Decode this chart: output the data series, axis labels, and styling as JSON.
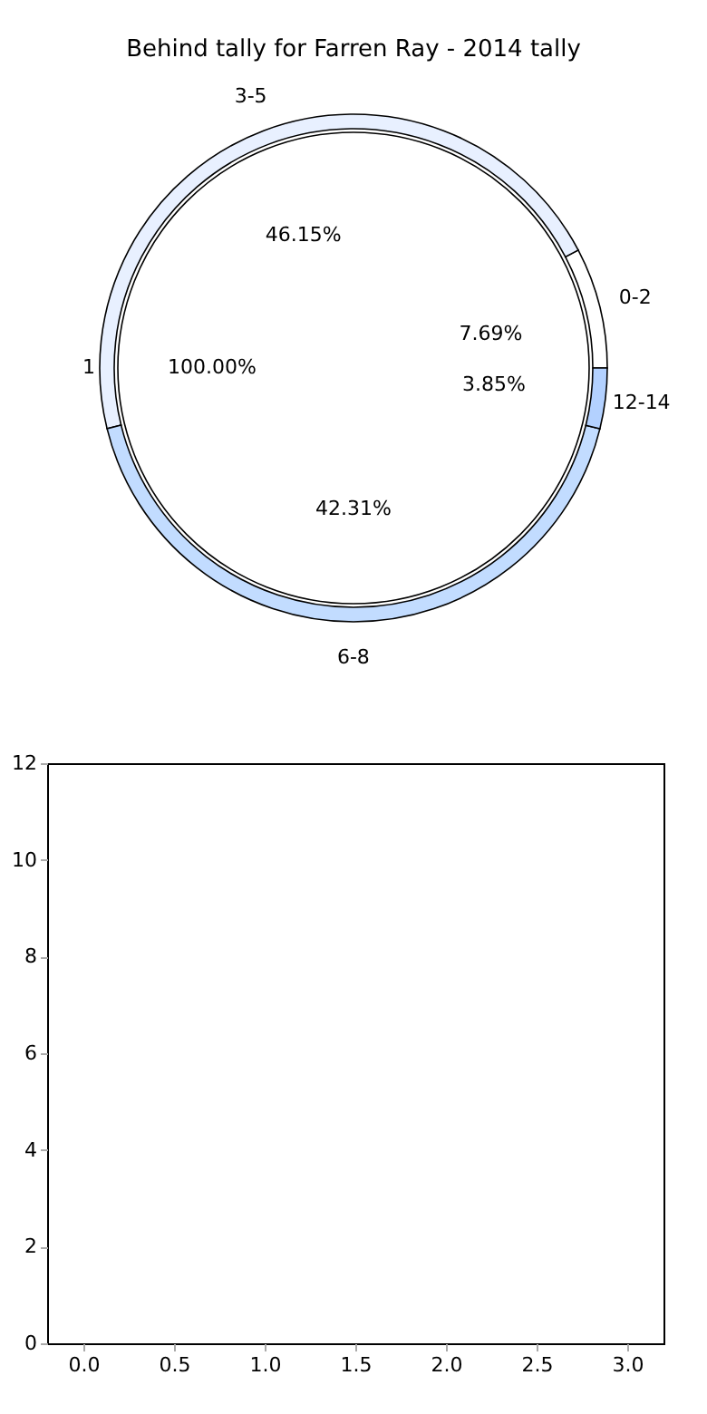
{
  "chart_data": [
    {
      "type": "pie",
      "title": "Behind tally for Farren Ray - 2014 tally",
      "categories": [
        "1"
      ],
      "values": [
        100
      ],
      "colors": [
        "#ffffff"
      ],
      "value_labels": [
        "100.00%"
      ]
    },
    {
      "type": "donut",
      "categories": [
        "0-2",
        "3-5",
        "6-8",
        "12-14"
      ],
      "values": [
        7.69,
        46.15,
        42.31,
        3.85
      ],
      "colors": [
        "#ffffff",
        "#e8f0ff",
        "#c2dcff",
        "#b3d1ff"
      ],
      "value_labels": [
        "7.69%",
        "46.15%",
        "42.31%",
        "3.85%"
      ]
    },
    {
      "type": "scatter",
      "xlim": [
        -0.2,
        3.2
      ],
      "ylim": [
        0,
        12
      ],
      "xticks": [
        {
          "value": 0,
          "label": "0.0"
        },
        0.5,
        {
          "value": 1,
          "label": "1.0"
        },
        1.5,
        {
          "value": 2,
          "label": "2.0"
        },
        2.5,
        {
          "value": 3,
          "label": "3.0"
        }
      ],
      "yticks": [
        0,
        2,
        4,
        6,
        8,
        10,
        12
      ],
      "grid": false
    }
  ]
}
